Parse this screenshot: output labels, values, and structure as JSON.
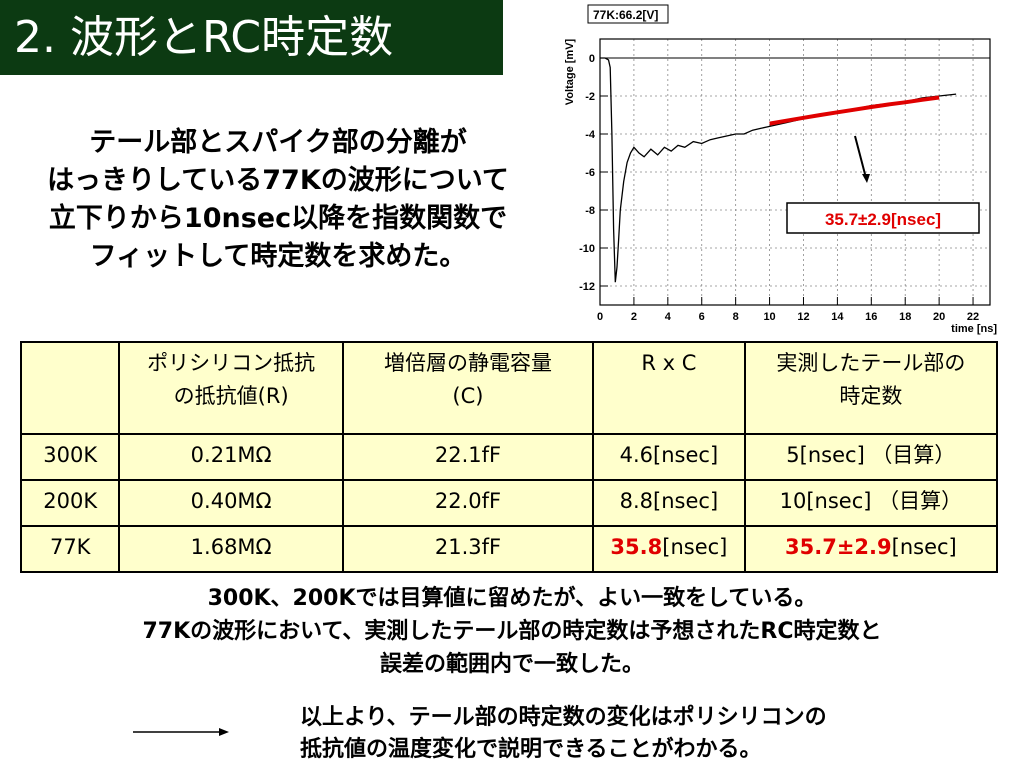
{
  "slide": {
    "title": "2. 波形とRC時定数",
    "description": [
      "テール部とスパイク部の分離が",
      "はっきりしている77Kの波形について",
      "立下りから10nsec以降を指数関数で",
      "フィットして時定数を求めた。"
    ],
    "summary": [
      "300K、200Kでは目算値に留めたが、よい一致をしている。",
      "77Kの波形において、実測したテール部の時定数は予想されたRC時定数と",
      "誤差の範囲内で一致した。"
    ],
    "conclusion": [
      "以上より、テール部の時定数の変化はポリシリコンの",
      "抵抗値の温度変化で説明できることがわかる。"
    ]
  },
  "chart_data": {
    "type": "line",
    "title": "77K:66.2[V]",
    "xlabel": "time [ns]",
    "ylabel": "Voltage [mV]",
    "xlim": [
      0,
      23
    ],
    "ylim": [
      -13,
      1
    ],
    "xticks": [
      0,
      2,
      4,
      6,
      8,
      10,
      12,
      14,
      16,
      18,
      20,
      22
    ],
    "yticks": [
      0,
      -2,
      -4,
      -6,
      -8,
      -10,
      -12
    ],
    "grid": true,
    "annotation": "35.7±2.9[nsec]",
    "series": [
      {
        "color": "#000000",
        "x": [
          0.0,
          0.3,
          0.5,
          0.6,
          0.7,
          0.8,
          0.9,
          1.0,
          1.1,
          1.2,
          1.4,
          1.6,
          1.8,
          2.0,
          2.3,
          2.6,
          3.0,
          3.4,
          3.8,
          4.2,
          4.6,
          5.0,
          5.5,
          6.0,
          6.5,
          7.0,
          7.5,
          8.0,
          8.5,
          9.0,
          9.5,
          10.0,
          11.0,
          12.0,
          13.0,
          14.0,
          15.0,
          16.0,
          17.0,
          18.0,
          19.0,
          20.0,
          21.0
        ],
        "y": [
          0.0,
          0.0,
          -0.1,
          -0.5,
          -4.0,
          -9.0,
          -11.8,
          -11.0,
          -9.5,
          -8.0,
          -6.5,
          -5.5,
          -5.0,
          -4.7,
          -5.0,
          -5.2,
          -4.8,
          -5.1,
          -4.7,
          -4.9,
          -4.6,
          -4.7,
          -4.4,
          -4.5,
          -4.3,
          -4.2,
          -4.1,
          -4.0,
          -4.0,
          -3.8,
          -3.7,
          -3.6,
          -3.4,
          -3.2,
          -3.0,
          -2.8,
          -2.7,
          -2.5,
          -2.4,
          -2.3,
          -2.1,
          -2.0,
          -1.9
        ]
      },
      {
        "color": "#e00000",
        "x": [
          10.0,
          11.0,
          12.0,
          13.0,
          14.0,
          15.0,
          16.0,
          17.0,
          18.0,
          19.0,
          20.0
        ],
        "y": [
          -3.45,
          -3.3,
          -3.15,
          -3.0,
          -2.86,
          -2.72,
          -2.58,
          -2.45,
          -2.33,
          -2.2,
          -2.08
        ]
      }
    ]
  },
  "table": {
    "headers": [
      "",
      "ポリシリコン抵抗\nの抵抗値(R)",
      "増倍層の静電容量\n(C)",
      "R x C",
      "実測したテール部の\n時定数"
    ],
    "rows": [
      {
        "temp": "300K",
        "r": "0.21MΩ",
        "c": "22.1fF",
        "rc_num": "",
        "rc_unit": "4.6[nsec]",
        "meas_num": "",
        "meas_unit": "5[nsec] （目算）"
      },
      {
        "temp": "200K",
        "r": "0.40MΩ",
        "c": "22.0fF",
        "rc_num": "",
        "rc_unit": "8.8[nsec]",
        "meas_num": "",
        "meas_unit": "10[nsec] （目算）"
      },
      {
        "temp": "77K",
        "r": "1.68MΩ",
        "c": "21.3fF",
        "rc_num": "35.8",
        "rc_unit": "[nsec]",
        "meas_num": "35.7±2.9",
        "meas_unit": "[nsec]"
      }
    ]
  },
  "colors": {
    "title_bg": "#0c3a12",
    "table_bg": "#ffffcc",
    "highlight": "#e00000",
    "fit_line": "#e00000"
  }
}
